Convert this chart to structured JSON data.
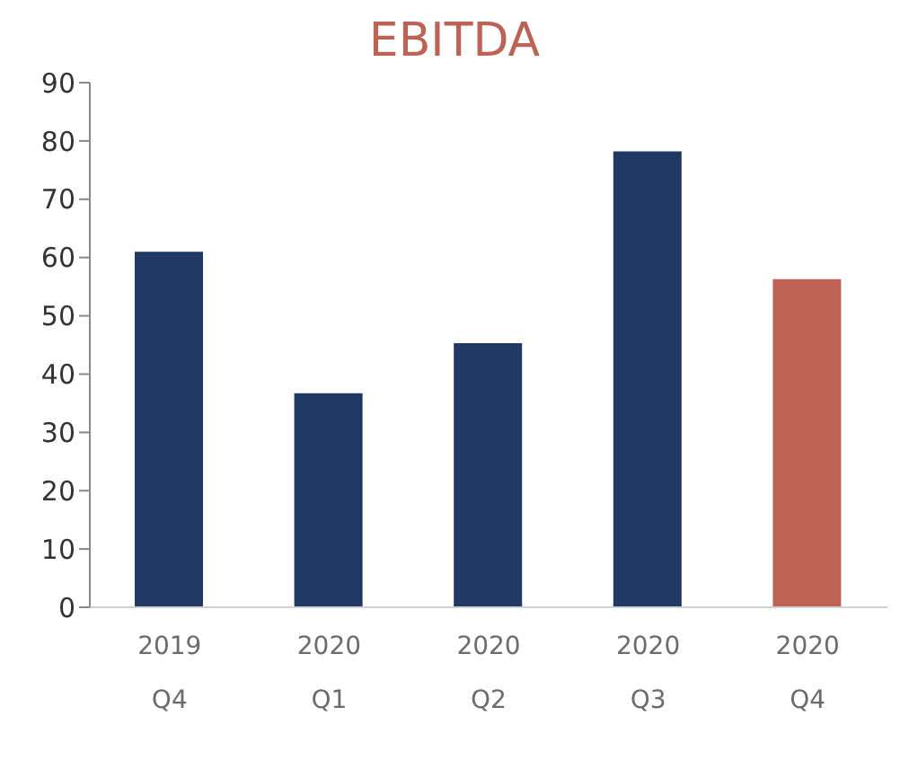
{
  "chart_data": {
    "type": "bar",
    "title": "EBITDA",
    "categories": [
      "2019\nQ4",
      "2020\nQ1",
      "2020\nQ2",
      "2020\nQ3",
      "2020\nQ4"
    ],
    "values": [
      61,
      36.7,
      45.3,
      78.2,
      56.3
    ],
    "colors": [
      "#203864",
      "#203864",
      "#203864",
      "#203864",
      "#bc6356"
    ],
    "ylim": [
      0,
      90
    ],
    "yticks": [
      0,
      10,
      20,
      30,
      40,
      50,
      60,
      70,
      80,
      90
    ],
    "grid": false,
    "legend": false
  }
}
